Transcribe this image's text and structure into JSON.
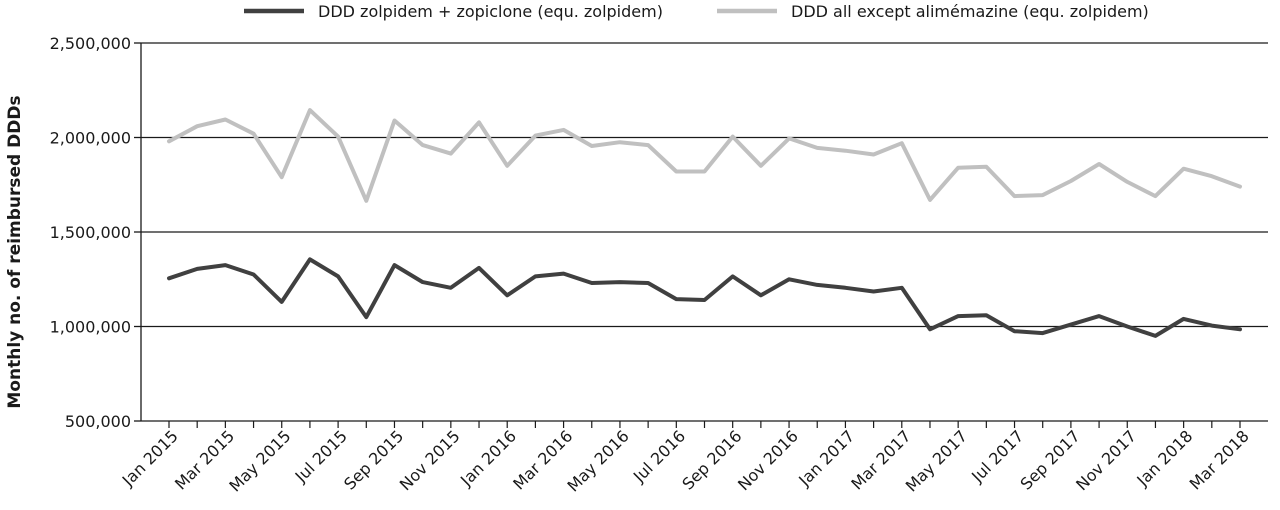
{
  "chart_data": {
    "type": "line",
    "title": "",
    "xlabel": "",
    "ylabel": "Monthly no. of reimbursed DDDs",
    "ylim": [
      500000,
      2500000
    ],
    "yticks": [
      500000,
      1000000,
      1500000,
      2000000,
      2500000
    ],
    "ytick_labels": [
      "500,000",
      "1,000,000",
      "1,500,000",
      "2,000,000",
      "2,500,000"
    ],
    "grid": "horizontal",
    "legend_position": "top",
    "x": [
      "Jan 2015",
      "Feb 2015",
      "Mar 2015",
      "Apr 2015",
      "May 2015",
      "Jun 2015",
      "Jul 2015",
      "Aug 2015",
      "Sep 2015",
      "Oct 2015",
      "Nov 2015",
      "Dec 2015",
      "Jan 2016",
      "Feb 2016",
      "Mar 2016",
      "Apr 2016",
      "May 2016",
      "Jun 2016",
      "Jul 2016",
      "Aug 2016",
      "Sep 2016",
      "Oct 2016",
      "Nov 2016",
      "Dec 2016",
      "Jan 2017",
      "Feb 2017",
      "Mar 2017",
      "Apr 2017",
      "May 2017",
      "Jun 2017",
      "Jul 2017",
      "Aug 2017",
      "Sep 2017",
      "Oct 2017",
      "Nov 2017",
      "Dec 2017",
      "Jan 2018",
      "Feb 2018",
      "Mar 2018"
    ],
    "xtick_labels": [
      "Jan 2015",
      "Mar 2015",
      "May 2015",
      "Jul 2015",
      "Sep 2015",
      "Nov 2015",
      "Jan 2016",
      "Mar 2016",
      "May 2016",
      "Jul 2016",
      "Sep 2016",
      "Nov 2016",
      "Jan 2017",
      "Mar 2017",
      "May 2017",
      "Jul 2017",
      "Sep 2017",
      "Nov 2017",
      "Jan 2018",
      "Mar 2018"
    ],
    "series": [
      {
        "name": "DDD zolpidem + zopiclone (equ. zolpidem)",
        "color": "#404040",
        "values": [
          1255000,
          1305000,
          1325000,
          1275000,
          1130000,
          1355000,
          1265000,
          1050000,
          1325000,
          1235000,
          1205000,
          1310000,
          1165000,
          1265000,
          1280000,
          1230000,
          1235000,
          1230000,
          1145000,
          1140000,
          1265000,
          1165000,
          1250000,
          1220000,
          1205000,
          1185000,
          1205000,
          985000,
          1055000,
          1060000,
          975000,
          965000,
          1010000,
          1055000,
          1000000,
          950000,
          1040000,
          1005000,
          985000
        ]
      },
      {
        "name": "DDD all except alimémazine (equ. zolpidem)",
        "color": "#c0c0c0",
        "values": [
          1980000,
          2060000,
          2095000,
          2020000,
          1790000,
          2145000,
          2005000,
          1665000,
          2090000,
          1960000,
          1915000,
          2080000,
          1850000,
          2010000,
          2040000,
          1955000,
          1975000,
          1960000,
          1820000,
          1820000,
          2005000,
          1850000,
          1995000,
          1945000,
          1930000,
          1910000,
          1970000,
          1670000,
          1840000,
          1845000,
          1690000,
          1695000,
          1770000,
          1860000,
          1765000,
          1690000,
          1835000,
          1795000,
          1740000
        ]
      }
    ]
  }
}
